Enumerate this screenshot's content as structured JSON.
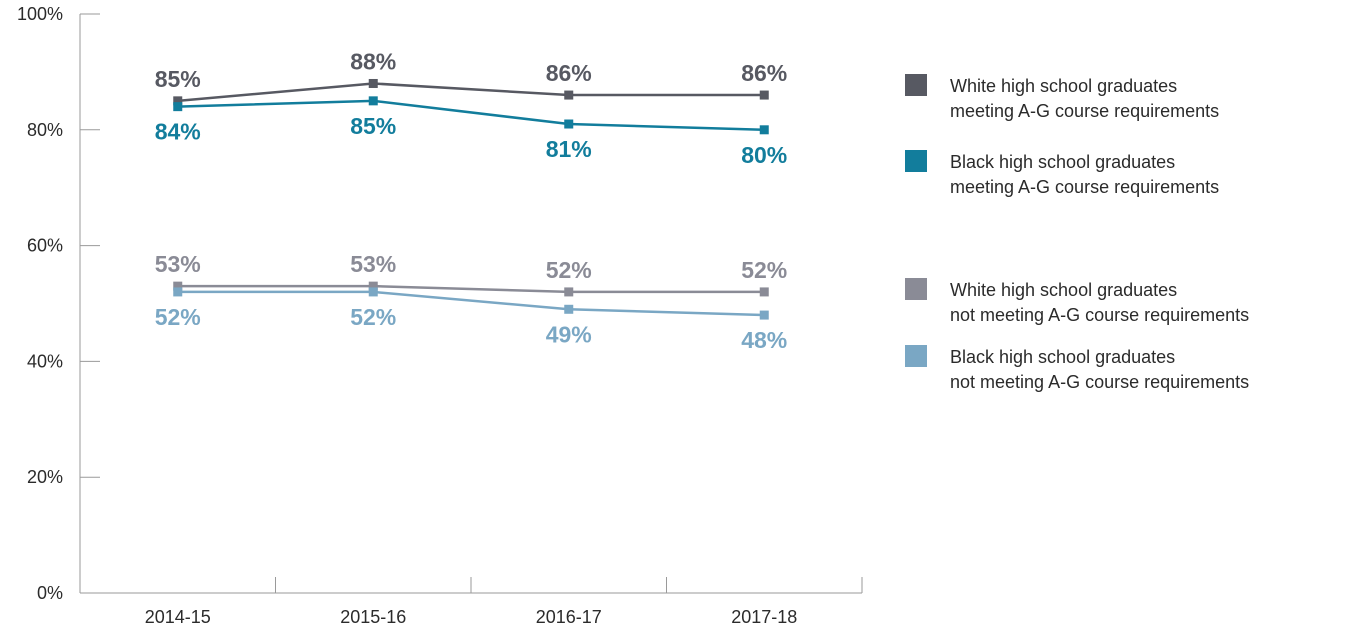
{
  "chart_data": {
    "type": "line",
    "categories": [
      "2014-15",
      "2015-16",
      "2016-17",
      "2017-18"
    ],
    "ylim": [
      0,
      100
    ],
    "yticks": [
      0,
      20,
      40,
      60,
      80,
      100
    ],
    "ytick_labels": [
      "0%",
      "20%",
      "40%",
      "60%",
      "80%",
      "100%"
    ],
    "grid": false,
    "legend_position": "right",
    "series": [
      {
        "name_lines": [
          "White high school graduates",
          "meeting A-G course requirements"
        ],
        "values": [
          85,
          88,
          86,
          86
        ],
        "labels": [
          "85%",
          "88%",
          "86%",
          "86%"
        ],
        "color": "#575962",
        "label_color": "#575962",
        "label_position": "above"
      },
      {
        "name_lines": [
          "Black high school graduates",
          "meeting A-G course requirements"
        ],
        "values": [
          84,
          85,
          81,
          80
        ],
        "labels": [
          "84%",
          "85%",
          "81%",
          "80%"
        ],
        "color": "#127d9c",
        "label_color": "#127d9c",
        "label_position": "below"
      },
      {
        "name_lines": [
          "White high school graduates",
          "not meeting A-G course requirements"
        ],
        "values": [
          53,
          53,
          52,
          52
        ],
        "labels": [
          "53%",
          "53%",
          "52%",
          "52%"
        ],
        "color": "#8a8b96",
        "label_color": "#8a8b96",
        "label_position": "above"
      },
      {
        "name_lines": [
          "Black high school graduates",
          "not meeting A-G course requirements"
        ],
        "values": [
          52,
          52,
          49,
          48
        ],
        "labels": [
          "52%",
          "52%",
          "49%",
          "48%"
        ],
        "color": "#7aa7c4",
        "label_color": "#7aa7c4",
        "label_position": "below"
      }
    ]
  }
}
